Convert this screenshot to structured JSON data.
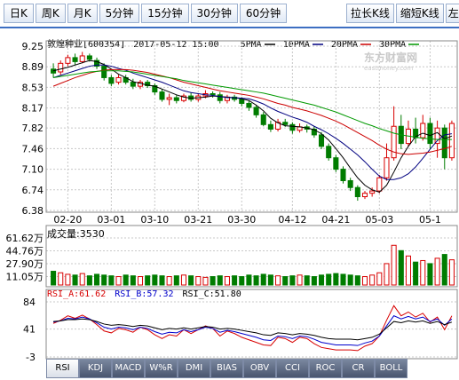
{
  "period_tabs": [
    "日K",
    "周K",
    "月K",
    "5分钟",
    "15分钟",
    "30分钟",
    "60分钟"
  ],
  "active_period": 0,
  "tool_buttons": [
    "拉长K线",
    "缩短K线",
    "左移"
  ],
  "header": {
    "stock": "敦煌种业[600354]",
    "datetime": "2017-05-12 15:00",
    "ma_labels": [
      "5PMA",
      "10PMA",
      "20PMA",
      "30PMA"
    ],
    "ma_colors": [
      "#000000",
      "#000080",
      "#cc0000",
      "#009900"
    ]
  },
  "watermark": {
    "name": "东方财富网",
    "url": "eastmoney.com"
  },
  "volume_label": "成交量:3530",
  "rsi_header": {
    "a": "RSI_A:61.62",
    "b": "RSI_B:57.32",
    "c": "RSI_C:51.80"
  },
  "indicator_tabs": [
    "RSI",
    "KDJ",
    "MACD",
    "W%R",
    "DMI",
    "BIAS",
    "OBV",
    "CCI",
    "ROC",
    "CR",
    "BOLL"
  ],
  "active_indicator": 0,
  "colors": {
    "up": "#d80000",
    "down": "#007c00",
    "rsi_a": "#d80000",
    "rsi_b": "#0000cc",
    "rsi_c": "#000000"
  },
  "chart_data": {
    "type": "candlestick",
    "price_axis_ticks": [
      "9.25",
      "8.89",
      "8.53",
      "8.17",
      "7.82",
      "7.46",
      "7.10",
      "6.74",
      "6.38"
    ],
    "price_range": [
      6.38,
      9.25
    ],
    "date_ticks": [
      "02-20",
      "03-01",
      "03-10",
      "03-21",
      "03-30",
      "04-12",
      "04-21",
      "05-03",
      "05-1"
    ],
    "volume_axis_ticks": [
      "61.62万",
      "44.76万",
      "27.90万",
      "11.05万"
    ],
    "volume_range": [
      0,
      61.62
    ],
    "rsi_axis_ticks": [
      "84",
      "41",
      "-3"
    ],
    "rsi_range": [
      -3,
      84
    ],
    "candles": [
      [
        8.85,
        8.78,
        8.95,
        8.7
      ],
      [
        8.8,
        8.95,
        9.0,
        8.75
      ],
      [
        8.95,
        9.05,
        9.1,
        8.9
      ],
      [
        9.05,
        8.98,
        9.12,
        8.92
      ],
      [
        8.98,
        9.08,
        9.15,
        8.95
      ],
      [
        9.08,
        9.02,
        9.12,
        8.98
      ],
      [
        9.0,
        8.9,
        9.05,
        8.85
      ],
      [
        8.9,
        8.7,
        8.95,
        8.65
      ],
      [
        8.7,
        8.6,
        8.75,
        8.55
      ],
      [
        8.62,
        8.7,
        8.75,
        8.58
      ],
      [
        8.7,
        8.62,
        8.75,
        8.58
      ],
      [
        8.62,
        8.55,
        8.68,
        8.5
      ],
      [
        8.55,
        8.62,
        8.66,
        8.5
      ],
      [
        8.62,
        8.56,
        8.66,
        8.52
      ],
      [
        8.56,
        8.45,
        8.6,
        8.4
      ],
      [
        8.45,
        8.32,
        8.5,
        8.28
      ],
      [
        8.32,
        8.35,
        8.42,
        8.22
      ],
      [
        8.35,
        8.3,
        8.4,
        8.25
      ],
      [
        8.3,
        8.38,
        8.42,
        8.27
      ],
      [
        8.38,
        8.32,
        8.44,
        8.28
      ],
      [
        8.32,
        8.38,
        8.42,
        8.28
      ],
      [
        8.38,
        8.42,
        8.48,
        8.34
      ],
      [
        8.42,
        8.4,
        8.46,
        8.35
      ],
      [
        8.4,
        8.3,
        8.45,
        8.25
      ],
      [
        8.3,
        8.36,
        8.4,
        8.25
      ],
      [
        8.36,
        8.32,
        8.4,
        8.28
      ],
      [
        8.32,
        8.25,
        8.36,
        8.2
      ],
      [
        8.25,
        8.18,
        8.3,
        8.12
      ],
      [
        8.18,
        8.05,
        8.22,
        8.0
      ],
      [
        8.05,
        7.88,
        8.1,
        7.85
      ],
      [
        7.88,
        7.8,
        7.95,
        7.75
      ],
      [
        7.8,
        7.92,
        7.98,
        7.76
      ],
      [
        7.92,
        7.88,
        7.98,
        7.84
      ],
      [
        7.88,
        7.78,
        7.92,
        7.72
      ],
      [
        7.78,
        7.84,
        7.9,
        7.74
      ],
      [
        7.84,
        7.8,
        7.88,
        7.74
      ],
      [
        7.8,
        7.7,
        7.85,
        7.65
      ],
      [
        7.7,
        7.5,
        7.75,
        7.45
      ],
      [
        7.5,
        7.3,
        7.55,
        7.25
      ],
      [
        7.3,
        7.1,
        7.35,
        7.05
      ],
      [
        7.1,
        6.9,
        7.15,
        6.85
      ],
      [
        6.9,
        6.78,
        6.95,
        6.72
      ],
      [
        6.78,
        6.62,
        6.82,
        6.55
      ],
      [
        6.62,
        6.68,
        6.72,
        6.58
      ],
      [
        6.68,
        6.72,
        6.78,
        6.62
      ],
      [
        6.72,
        6.95,
        7.0,
        6.68
      ],
      [
        6.95,
        7.3,
        7.55,
        6.9
      ],
      [
        7.3,
        7.85,
        8.2,
        7.25
      ],
      [
        7.85,
        7.55,
        8.05,
        7.45
      ],
      [
        7.55,
        7.8,
        7.95,
        7.5
      ],
      [
        7.8,
        7.65,
        8.0,
        7.55
      ],
      [
        7.65,
        7.9,
        8.05,
        7.6
      ],
      [
        7.9,
        7.55,
        8.0,
        7.45
      ],
      [
        7.55,
        7.82,
        7.95,
        7.3
      ],
      [
        7.82,
        7.3,
        7.88,
        7.1
      ],
      [
        7.3,
        7.9,
        7.95,
        7.25
      ]
    ],
    "volumes": [
      18,
      16,
      14,
      13,
      15,
      12,
      14,
      13,
      12,
      11,
      13,
      12,
      11,
      12,
      13,
      12,
      11,
      12,
      13,
      12,
      11,
      10,
      11,
      12,
      11,
      12,
      11,
      13,
      12,
      14,
      13,
      12,
      11,
      12,
      13,
      12,
      11,
      13,
      14,
      15,
      14,
      13,
      12,
      11,
      13,
      16,
      28,
      52,
      45,
      38,
      30,
      32,
      28,
      35,
      40,
      33
    ],
    "ma5": [
      8.82,
      8.85,
      8.88,
      8.92,
      8.96,
      9.0,
      8.98,
      8.93,
      8.85,
      8.76,
      8.7,
      8.63,
      8.6,
      8.57,
      8.55,
      8.5,
      8.45,
      8.4,
      8.36,
      8.34,
      8.35,
      8.36,
      8.38,
      8.37,
      8.36,
      8.35,
      8.33,
      8.3,
      8.22,
      8.12,
      7.99,
      7.91,
      7.86,
      7.85,
      7.84,
      7.82,
      7.79,
      7.72,
      7.61,
      7.46,
      7.3,
      7.12,
      6.95,
      6.82,
      6.74,
      6.7,
      6.82,
      7.05,
      7.3,
      7.5,
      7.67,
      7.73,
      7.69,
      7.74,
      7.63,
      7.68
    ],
    "ma10": [
      8.7,
      8.74,
      8.78,
      8.82,
      8.86,
      8.9,
      8.92,
      8.92,
      8.9,
      8.86,
      8.83,
      8.78,
      8.74,
      8.7,
      8.66,
      8.62,
      8.57,
      8.52,
      8.47,
      8.44,
      8.42,
      8.4,
      8.39,
      8.37,
      8.35,
      8.35,
      8.34,
      8.33,
      8.29,
      8.24,
      8.17,
      8.11,
      8.06,
      8.01,
      7.97,
      7.92,
      7.85,
      7.79,
      7.72,
      7.64,
      7.55,
      7.45,
      7.35,
      7.23,
      7.1,
      6.98,
      6.92,
      6.92,
      6.95,
      7.02,
      7.14,
      7.29,
      7.45,
      7.6,
      7.7,
      7.72
    ],
    "ma20": [
      8.55,
      8.6,
      8.65,
      8.7,
      8.74,
      8.78,
      8.81,
      8.83,
      8.84,
      8.84,
      8.84,
      8.83,
      8.81,
      8.79,
      8.76,
      8.73,
      8.7,
      8.66,
      8.62,
      8.59,
      8.56,
      8.53,
      8.5,
      8.47,
      8.45,
      8.43,
      8.41,
      8.39,
      8.36,
      8.33,
      8.29,
      8.25,
      8.22,
      8.18,
      8.15,
      8.12,
      8.08,
      8.04,
      7.99,
      7.94,
      7.88,
      7.81,
      7.74,
      7.67,
      7.6,
      7.52,
      7.45,
      7.4,
      7.37,
      7.36,
      7.37,
      7.38,
      7.4,
      7.43,
      7.46,
      7.5
    ],
    "ma30": [
      8.7,
      8.72,
      8.74,
      8.76,
      8.78,
      8.8,
      8.81,
      8.82,
      8.82,
      8.82,
      8.81,
      8.8,
      8.78,
      8.76,
      8.74,
      8.72,
      8.7,
      8.68,
      8.65,
      8.63,
      8.61,
      8.59,
      8.57,
      8.55,
      8.53,
      8.51,
      8.49,
      8.47,
      8.45,
      8.43,
      8.4,
      8.37,
      8.34,
      8.31,
      8.28,
      8.25,
      8.22,
      8.18,
      8.14,
      8.1,
      8.05,
      8.0,
      7.95,
      7.9,
      7.86,
      7.81,
      7.77,
      7.73,
      7.7,
      7.68,
      7.66,
      7.64,
      7.63,
      7.62,
      7.62,
      7.62
    ],
    "rsi_a": [
      50,
      55,
      62,
      58,
      63,
      57,
      48,
      38,
      35,
      42,
      40,
      36,
      44,
      40,
      32,
      26,
      32,
      30,
      40,
      34,
      40,
      46,
      42,
      30,
      38,
      34,
      28,
      24,
      20,
      16,
      15,
      28,
      26,
      20,
      28,
      26,
      18,
      12,
      10,
      8,
      8,
      8,
      7,
      14,
      18,
      30,
      55,
      78,
      62,
      68,
      60,
      66,
      52,
      60,
      40,
      62
    ],
    "rsi_b": [
      52,
      54,
      58,
      57,
      60,
      57,
      51,
      44,
      41,
      44,
      43,
      40,
      44,
      42,
      37,
      33,
      36,
      35,
      40,
      37,
      40,
      44,
      42,
      36,
      39,
      37,
      34,
      31,
      28,
      24,
      23,
      30,
      29,
      26,
      30,
      29,
      25,
      20,
      18,
      16,
      16,
      16,
      15,
      19,
      22,
      30,
      46,
      62,
      57,
      61,
      57,
      60,
      53,
      57,
      47,
      57
    ],
    "rsi_c": [
      53,
      54,
      56,
      56,
      57,
      56,
      53,
      49,
      47,
      48,
      47,
      45,
      47,
      46,
      43,
      40,
      42,
      41,
      43,
      41,
      43,
      45,
      44,
      41,
      42,
      41,
      39,
      37,
      35,
      32,
      31,
      35,
      34,
      32,
      34,
      33,
      31,
      28,
      26,
      25,
      25,
      25,
      24,
      26,
      28,
      33,
      43,
      53,
      51,
      54,
      52,
      54,
      50,
      53,
      48,
      52
    ]
  }
}
